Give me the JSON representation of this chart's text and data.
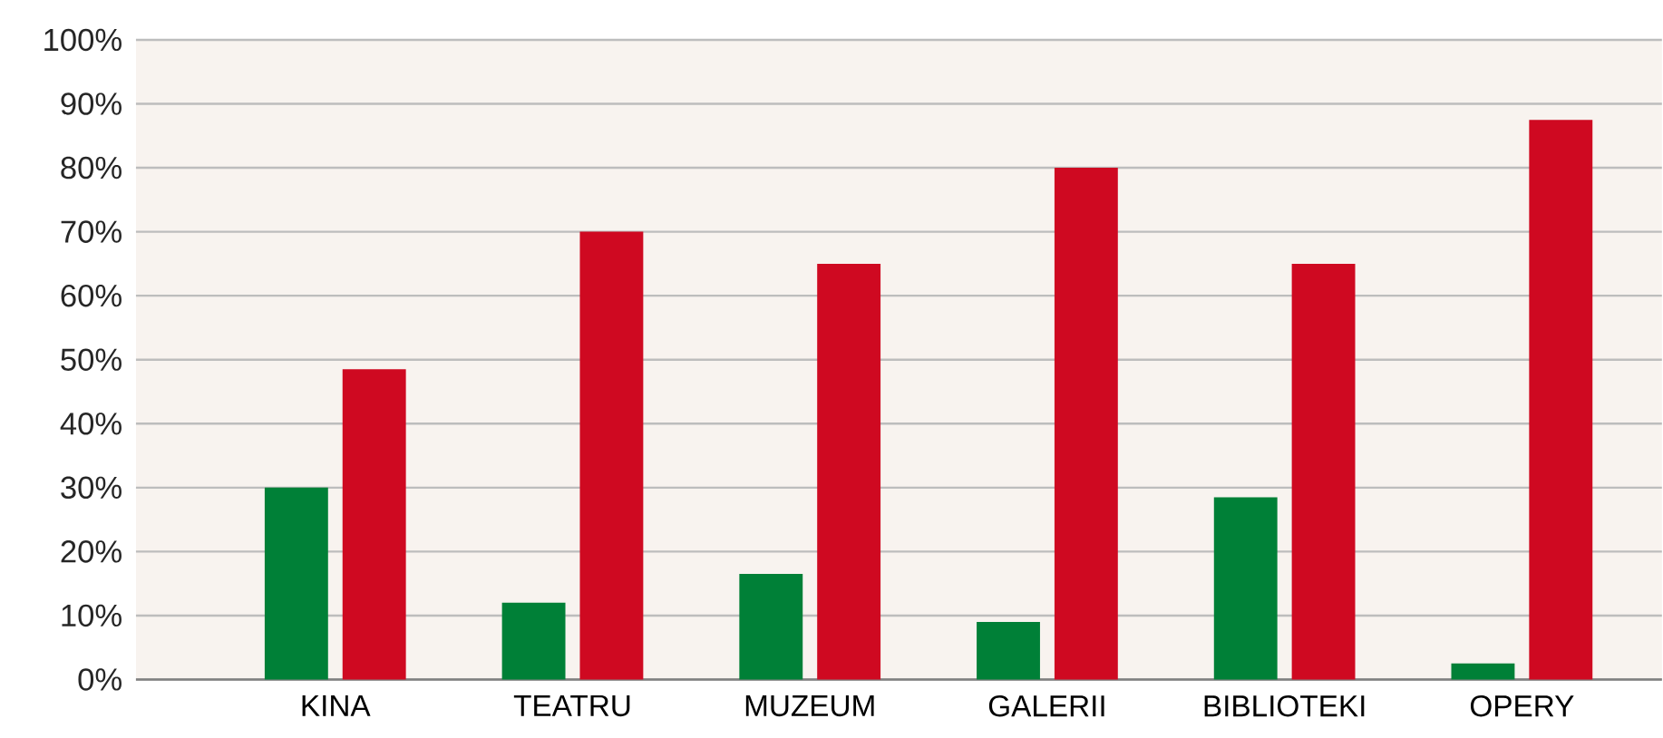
{
  "chart_data": {
    "type": "bar",
    "categories": [
      "KINA",
      "TEATRU",
      "MUZEUM",
      "GALERII",
      "BIBLIOTEKI",
      "OPERY"
    ],
    "series": [
      {
        "color": "#008037",
        "values": [
          30,
          12,
          16.5,
          9,
          28.5,
          2.5
        ]
      },
      {
        "color": "#cf0921",
        "values": [
          48.5,
          70,
          65,
          80,
          65,
          87.5
        ]
      }
    ],
    "ylim": [
      0,
      100
    ],
    "yticks": [
      {
        "value": 0,
        "label": "0%"
      },
      {
        "value": 10,
        "label": "10%"
      },
      {
        "value": 20,
        "label": "20%"
      },
      {
        "value": 30,
        "label": "30%"
      },
      {
        "value": 40,
        "label": "40%"
      },
      {
        "value": 50,
        "label": "50%"
      },
      {
        "value": 60,
        "label": "60%"
      },
      {
        "value": 70,
        "label": "70%"
      },
      {
        "value": 80,
        "label": "80%"
      },
      {
        "value": 90,
        "label": "90%"
      },
      {
        "value": 100,
        "label": "100%"
      }
    ],
    "grid": "y"
  }
}
